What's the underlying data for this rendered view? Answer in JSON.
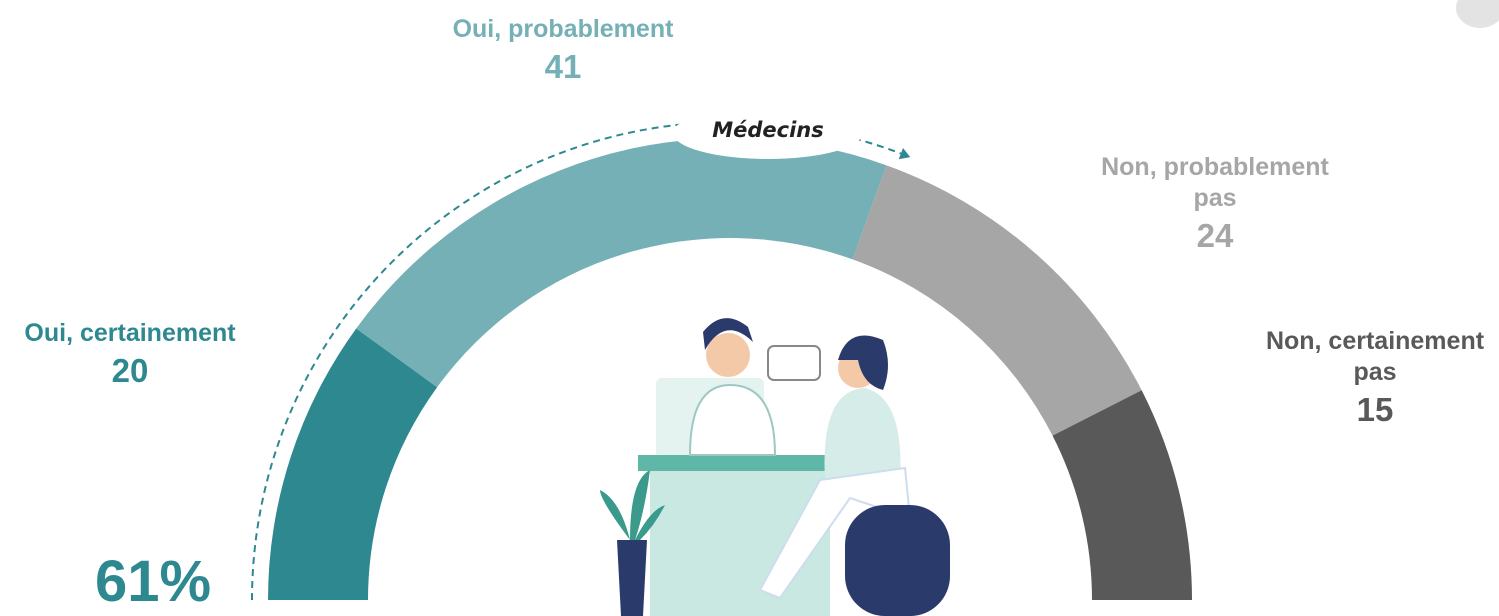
{
  "chart_data": {
    "type": "donut",
    "categories": [
      "Oui, certainement",
      "Oui, probablement",
      "Non, probablement pas",
      "Non, certainement pas"
    ],
    "values": [
      20,
      41,
      24,
      15
    ],
    "colors": [
      "#2e8890",
      "#74b0b5",
      "#a6a6a6",
      "#595959"
    ],
    "annotation": "Médecins",
    "summary": "61%"
  }
}
